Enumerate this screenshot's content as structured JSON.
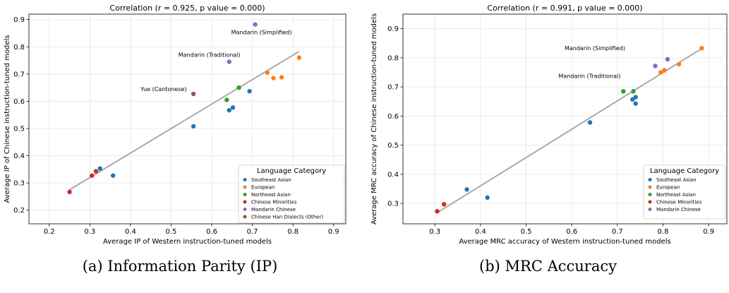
{
  "captions": [
    "(a) Information Parity (IP)",
    "(b) MRC Accuracy"
  ],
  "legend_title": "Language Category",
  "colors": {
    "Southeast Asian": "#1f77b4",
    "European": "#ff7f0e",
    "Northeast Asian": "#2ca02c",
    "Chinese Minorities": "#d62728",
    "Mandarin Chinese": "#9467bd",
    "Chinese Han Dialects (Other)": "#8c564b"
  },
  "chart_data": [
    {
      "type": "scatter",
      "title": "Correlation (r = 0.925, p value = 0.000)",
      "xlabel": "Average IP of Western instruction-tuned models",
      "ylabel": "Average IP of Chinese instruction-tuned models",
      "xlim": [
        0.15,
        0.93
      ],
      "ylim": [
        0.15,
        0.92
      ],
      "xticks": [
        "0.2",
        "0.3",
        "0.4",
        "0.5",
        "0.6",
        "0.7",
        "0.8",
        "0.9"
      ],
      "yticks": [
        "0.2",
        "0.3",
        "0.4",
        "0.5",
        "0.6",
        "0.7",
        "0.8",
        "0.9"
      ],
      "grid": true,
      "legend_position": "lower-right",
      "trendline": {
        "x": [
          0.25,
          0.815
        ],
        "y": [
          0.275,
          0.783
        ]
      },
      "series": [
        {
          "name": "Southeast Asian",
          "points": [
            [
              0.325,
              0.353
            ],
            [
              0.357,
              0.327
            ],
            [
              0.555,
              0.508
            ],
            [
              0.643,
              0.567
            ],
            [
              0.652,
              0.577
            ],
            [
              0.693,
              0.637
            ]
          ]
        },
        {
          "name": "European",
          "points": [
            [
              0.737,
              0.705
            ],
            [
              0.752,
              0.685
            ],
            [
              0.772,
              0.688
            ],
            [
              0.815,
              0.76
            ]
          ]
        },
        {
          "name": "Northeast Asian",
          "points": [
            [
              0.637,
              0.605
            ],
            [
              0.667,
              0.65
            ]
          ]
        },
        {
          "name": "Chinese Minorities",
          "points": [
            [
              0.25,
              0.267
            ],
            [
              0.305,
              0.327
            ],
            [
              0.315,
              0.343
            ]
          ]
        },
        {
          "name": "Mandarin Chinese",
          "points": [
            [
              0.643,
              0.745
            ],
            [
              0.707,
              0.882
            ]
          ]
        },
        {
          "name": "Chinese Han Dialects (Other)",
          "points": [
            [
              0.555,
              0.627
            ]
          ]
        }
      ],
      "annotations": [
        {
          "text": "Mandarin (Simplified)",
          "x": 0.707,
          "y": 0.882
        },
        {
          "text": "Mandarin (Traditional)",
          "x": 0.643,
          "y": 0.745
        },
        {
          "text": "Yue (Cantonese)",
          "x": 0.555,
          "y": 0.627
        }
      ]
    },
    {
      "type": "scatter",
      "title": "Correlation (r = 0.991, p value = 0.000)",
      "xlabel": "Average MRC accuracy of Western instruction-tuned models",
      "ylabel": "Average MRC accuracy of Chinese instruction-tuned models",
      "xlim": [
        0.23,
        0.94
      ],
      "ylim": [
        0.23,
        0.95
      ],
      "xticks": [
        "0.3",
        "0.4",
        "0.5",
        "0.6",
        "0.7",
        "0.8",
        "0.9"
      ],
      "yticks": [
        "0.3",
        "0.4",
        "0.5",
        "0.6",
        "0.7",
        "0.8",
        "0.9"
      ],
      "grid": true,
      "legend_position": "lower-right",
      "trendline": {
        "x": [
          0.305,
          0.885
        ],
        "y": [
          0.268,
          0.832
        ]
      },
      "series": [
        {
          "name": "Southeast Asian",
          "points": [
            [
              0.37,
              0.348
            ],
            [
              0.415,
              0.32
            ],
            [
              0.64,
              0.578
            ],
            [
              0.733,
              0.657
            ],
            [
              0.74,
              0.643
            ],
            [
              0.74,
              0.665
            ]
          ]
        },
        {
          "name": "European",
          "points": [
            [
              0.795,
              0.75
            ],
            [
              0.803,
              0.757
            ],
            [
              0.835,
              0.778
            ],
            [
              0.885,
              0.833
            ]
          ]
        },
        {
          "name": "Northeast Asian",
          "points": [
            [
              0.713,
              0.685
            ],
            [
              0.735,
              0.685
            ]
          ]
        },
        {
          "name": "Chinese Minorities",
          "points": [
            [
              0.305,
              0.273
            ],
            [
              0.32,
              0.297
            ]
          ]
        },
        {
          "name": "Mandarin Chinese",
          "points": [
            [
              0.783,
              0.772
            ],
            [
              0.81,
              0.795
            ]
          ]
        }
      ],
      "annotations": [
        {
          "text": "Mandarin (Simplified)",
          "x": 0.81,
          "y": 0.795
        },
        {
          "text": "Mandarin (Traditional)",
          "x": 0.783,
          "y": 0.772
        }
      ]
    }
  ]
}
